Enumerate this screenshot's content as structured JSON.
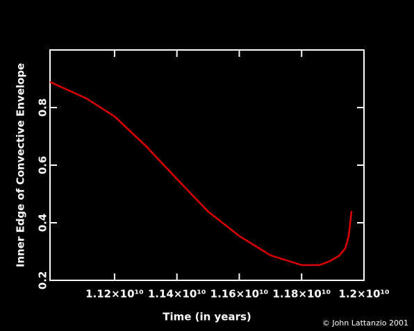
{
  "chart_data": {
    "type": "line",
    "xlabel": "Time (in years)",
    "ylabel": "Inner Edge of Convective Envelope",
    "credit": "© John Lattanzio 2001",
    "x": [
      10993000000,
      11111000000,
      11200000000,
      11300000000,
      11400000000,
      11500000000,
      11600000000,
      11700000000,
      11800000000,
      11858000000,
      11891000000,
      11922000000,
      11940000000,
      11951000000,
      11960000000
    ],
    "series": [
      {
        "color": "#e00000",
        "values": [
          0.889,
          0.831,
          0.769,
          0.667,
          0.552,
          0.439,
          0.354,
          0.287,
          0.253,
          0.253,
          0.267,
          0.287,
          0.311,
          0.354,
          0.441
        ]
      }
    ],
    "xlim": [
      10993000000,
      12000000000
    ],
    "ylim": [
      0.2,
      1.0
    ],
    "xticks": [
      {
        "value": 11200000000,
        "label": "1.12×10¹⁰"
      },
      {
        "value": 11400000000,
        "label": "1.14×10¹⁰"
      },
      {
        "value": 11600000000,
        "label": "1.16×10¹⁰"
      },
      {
        "value": 11800000000,
        "label": "1.18×10¹⁰"
      },
      {
        "value": 12000000000,
        "label": "1.2×10¹⁰"
      }
    ],
    "yticks": [
      0.2,
      0.4,
      0.6,
      0.8
    ]
  }
}
